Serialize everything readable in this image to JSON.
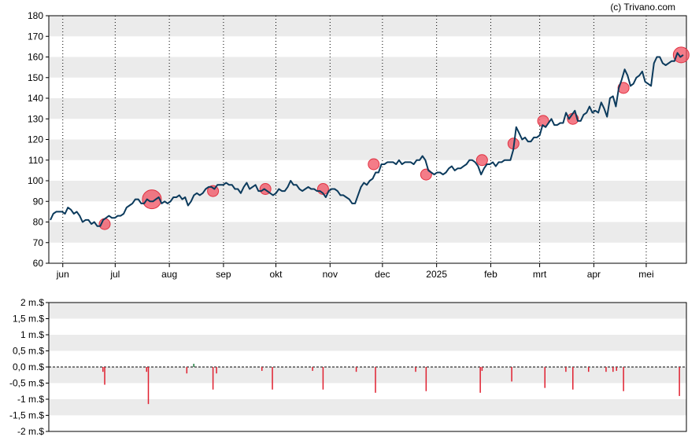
{
  "credit": "(c) Trivano.com",
  "chart_data": [
    {
      "type": "line",
      "title": "",
      "xlabel": "",
      "ylabel": "",
      "ylim": [
        60,
        180
      ],
      "y_ticks": [
        "60",
        "70",
        "80",
        "90",
        "100",
        "110",
        "120",
        "130",
        "140",
        "150",
        "160",
        "170",
        "180"
      ],
      "x_ticks": [
        "jun",
        "jul",
        "aug",
        "sep",
        "okt",
        "nov",
        "dec",
        "2025",
        "feb",
        "mrt",
        "apr",
        "mei"
      ],
      "grid": "alternating horizontal bands, dotted vertical lines at month starts",
      "colors": {
        "line": "#0b3a5c",
        "marker": "#f05060",
        "band": "#ebebeb"
      },
      "series": [
        {
          "values": [
            81,
            84,
            85,
            85,
            85,
            84,
            87,
            86,
            84,
            85,
            83,
            80,
            81,
            81,
            79,
            80,
            78,
            78,
            81,
            82,
            83,
            82,
            82,
            83,
            83,
            84,
            87,
            88,
            89,
            91,
            91,
            89,
            89,
            91,
            90,
            90,
            91,
            92,
            89,
            90,
            89,
            90,
            92,
            92,
            93,
            91,
            92,
            88,
            90,
            93,
            94,
            93,
            94,
            96,
            97,
            97,
            96,
            98,
            98,
            98,
            99,
            98,
            98,
            96,
            96,
            94,
            97,
            99,
            96,
            97,
            98,
            95,
            95,
            96,
            95,
            94,
            93,
            94,
            96,
            95,
            95,
            97,
            100,
            98,
            98,
            96,
            95,
            96,
            97,
            96,
            96,
            95,
            95,
            94,
            92,
            95,
            96,
            96,
            95,
            93,
            93,
            92,
            91,
            89,
            89,
            93,
            97,
            99,
            98,
            100,
            101,
            104,
            104,
            108,
            108,
            109,
            109,
            109,
            108,
            110,
            108,
            109,
            109,
            109,
            108,
            110,
            110,
            112,
            110,
            105,
            104,
            103,
            104,
            104,
            103,
            104,
            106,
            107,
            105,
            106,
            106,
            107,
            108,
            110,
            110,
            109,
            107,
            103,
            106,
            108,
            108,
            109,
            107,
            109,
            109,
            110,
            110,
            110,
            115,
            126,
            123,
            120,
            121,
            119,
            119,
            121,
            121,
            122,
            127,
            126,
            128,
            130,
            127,
            127,
            128,
            128,
            133,
            130,
            132,
            134,
            129,
            129,
            132,
            133,
            136,
            133,
            134,
            133,
            138,
            135,
            131,
            140,
            141,
            136,
            145,
            149,
            154,
            151,
            146,
            147,
            150,
            151,
            153,
            148,
            147,
            146,
            157,
            160,
            160,
            157,
            156,
            157,
            158,
            158,
            162,
            160,
            161
          ]
        }
      ],
      "events": [
        {
          "date": "2024-06-25",
          "price": 79
        },
        {
          "date": "2024-07-22",
          "price": 91
        },
        {
          "date": "2024-08-26",
          "price": 95
        },
        {
          "date": "2024-09-25",
          "price": 96
        },
        {
          "date": "2024-10-28",
          "price": 96
        },
        {
          "date": "2024-11-26",
          "price": 108
        },
        {
          "date": "2024-12-26",
          "price": 103
        },
        {
          "date": "2025-01-27",
          "price": 110
        },
        {
          "date": "2025-02-14",
          "price": 118
        },
        {
          "date": "2025-03-03",
          "price": 129
        },
        {
          "date": "2025-03-20",
          "price": 130
        },
        {
          "date": "2025-04-18",
          "price": 145
        },
        {
          "date": "2025-05-21",
          "price": 161
        }
      ]
    },
    {
      "type": "bar",
      "title": "",
      "xlabel": "",
      "ylabel": "",
      "ylim": [
        -2,
        2
      ],
      "y_ticks": [
        "2 m.$",
        "1,5 m.$",
        "1 m.$",
        "0,5 m.$",
        "0,0 m.$",
        "-0,5 m.$",
        "-1 m.$",
        "-1,5 m.$",
        "-2 m.$"
      ],
      "colors": {
        "negative": "#e02030",
        "positive": "#1a7a3a",
        "band": "#ebebeb"
      },
      "bars": [
        {
          "date": "2024-06-24",
          "value": -0.15
        },
        {
          "date": "2024-06-25",
          "value": -0.55
        },
        {
          "date": "2024-07-19",
          "value": -0.15
        },
        {
          "date": "2024-07-20",
          "value": -1.15
        },
        {
          "date": "2024-08-11",
          "value": -0.2
        },
        {
          "date": "2024-08-15",
          "value": 0.1
        },
        {
          "date": "2024-08-26",
          "value": -0.7
        },
        {
          "date": "2024-08-28",
          "value": -0.2
        },
        {
          "date": "2024-09-23",
          "value": -0.12
        },
        {
          "date": "2024-09-29",
          "value": -0.7
        },
        {
          "date": "2024-10-22",
          "value": -0.12
        },
        {
          "date": "2024-10-28",
          "value": -0.7
        },
        {
          "date": "2024-11-16",
          "value": -0.15
        },
        {
          "date": "2024-11-27",
          "value": -0.8
        },
        {
          "date": "2024-12-20",
          "value": -0.15
        },
        {
          "date": "2024-12-26",
          "value": -0.75
        },
        {
          "date": "2025-01-26",
          "value": -0.8
        },
        {
          "date": "2025-01-27",
          "value": -0.12
        },
        {
          "date": "2025-02-13",
          "value": -0.45
        },
        {
          "date": "2025-03-04",
          "value": -0.65
        },
        {
          "date": "2025-03-16",
          "value": -0.15
        },
        {
          "date": "2025-03-20",
          "value": -0.7
        },
        {
          "date": "2025-03-29",
          "value": -0.15
        },
        {
          "date": "2025-04-08",
          "value": -0.15
        },
        {
          "date": "2025-04-12",
          "value": -0.15
        },
        {
          "date": "2025-04-14",
          "value": -0.12
        },
        {
          "date": "2025-04-18",
          "value": -0.75
        },
        {
          "date": "2025-05-20",
          "value": -0.9
        }
      ]
    }
  ]
}
